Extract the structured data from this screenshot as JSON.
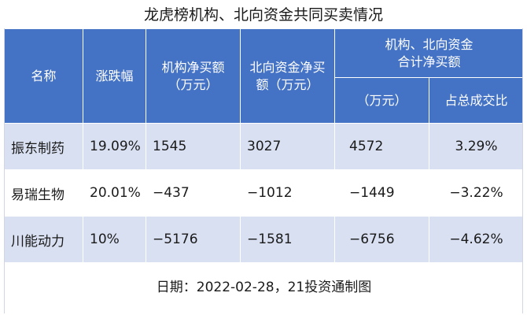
{
  "title": "龙虎榜机构、北向资金共同买卖情况",
  "headers": {
    "name": "名称",
    "change": "涨跌幅",
    "inst_line1": "机构净买额",
    "inst_line2": "（万元）",
    "north_line1": "北向资金净买",
    "north_line2": "额（万元）",
    "combined_line1": "机构、北向资金",
    "combined_line2": "合计净买额",
    "combined_amount": "（万元）",
    "combined_ratio": "占总成交比"
  },
  "rows": [
    {
      "name": "振东制药",
      "change": "19.09%",
      "inst": "1545",
      "north": "3027",
      "total": "4572",
      "ratio": "3.29%"
    },
    {
      "name": "易瑞生物",
      "change": "20.01%",
      "inst": "−437",
      "north": "−1012",
      "total": "−1449",
      "ratio": "−3.22%"
    },
    {
      "name": "川能动力",
      "change": "10%",
      "inst": "−5176",
      "north": "−1581",
      "total": "−6756",
      "ratio": "−4.62%"
    }
  ],
  "footer": "日期：2022-02-28，21投资通制图",
  "colors": {
    "header_bg": "#4472c4",
    "band_bg": "#d9e0f2"
  }
}
